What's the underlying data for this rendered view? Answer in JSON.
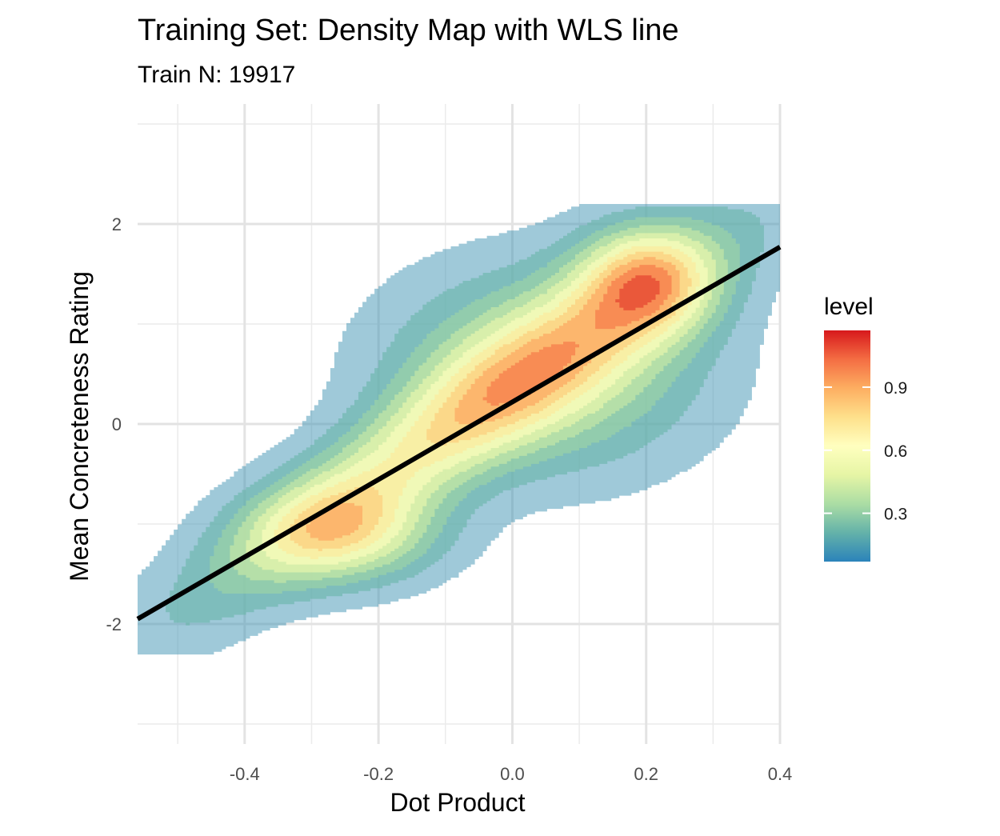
{
  "chart_data": {
    "type": "density_contour",
    "title": "Training Set: Density Map with WLS line",
    "subtitle": "Train N: 19917",
    "xlabel": "Dot Product",
    "ylabel": "Mean Concreteness Rating",
    "xlim": [
      -0.56,
      0.4
    ],
    "ylim": [
      -3.2,
      3.2
    ],
    "x_ticks": [
      {
        "value": -0.4,
        "label": "-0.4"
      },
      {
        "value": -0.2,
        "label": "-0.2"
      },
      {
        "value": 0.0,
        "label": "0.0"
      },
      {
        "value": 0.2,
        "label": "0.2"
      },
      {
        "value": 0.4,
        "label": "0.4"
      }
    ],
    "y_ticks": [
      {
        "value": -2,
        "label": "-2"
      },
      {
        "value": 0,
        "label": "0"
      },
      {
        "value": 2,
        "label": "2"
      }
    ],
    "x_minor_grid": [
      -0.5,
      -0.3,
      -0.1,
      0.1,
      0.3
    ],
    "y_minor_grid": [
      -3,
      -1,
      1,
      3
    ],
    "grid": true,
    "legend": {
      "title": "level",
      "position": "right",
      "range": [
        0.07,
        1.17
      ],
      "ticks": [
        {
          "value": 0.3,
          "label": "0.3"
        },
        {
          "value": 0.6,
          "label": "0.6"
        },
        {
          "value": 0.9,
          "label": "0.9"
        }
      ],
      "colors": [
        "#2B83BA",
        "#64B2A9",
        "#ABDDA4",
        "#E6F5A5",
        "#FFFFBF",
        "#FEE08B",
        "#FDAE61",
        "#F46D43",
        "#D7191C"
      ]
    },
    "wls_line": {
      "x": [
        -0.56,
        0.4
      ],
      "y": [
        -1.95,
        1.77
      ]
    },
    "density_modes": [
      {
        "x": 0.2,
        "y": 1.45,
        "level": 1.17
      },
      {
        "x": -0.25,
        "y": -1.1,
        "level": 0.95
      },
      {
        "x": 0.05,
        "y": 0.55,
        "level": 0.85
      }
    ],
    "contour_levels": [
      0.07,
      0.17,
      0.27,
      0.37,
      0.47,
      0.57,
      0.67,
      0.77,
      0.87,
      0.97,
      1.07
    ]
  }
}
